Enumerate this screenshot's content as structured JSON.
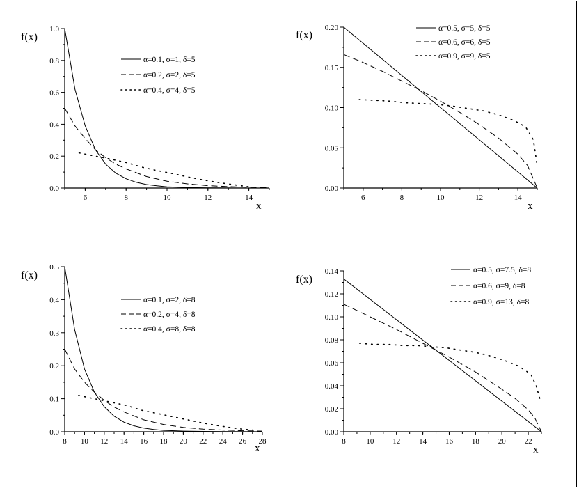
{
  "chart_data": [
    {
      "type": "line",
      "ylabel": "f(x)",
      "xlabel": "x",
      "xlim": [
        5,
        15
      ],
      "ylim": [
        0,
        1.0
      ],
      "x_ticks": [
        "6",
        "8",
        "10",
        "12",
        "14"
      ],
      "y_ticks": [
        "0.0",
        "0.2",
        "0.4",
        "0.6",
        "0.8",
        "1.0"
      ],
      "legend_position": "top-right",
      "series": [
        {
          "name": "α=0.1, σ=1, δ=5",
          "style": "solid",
          "x": [
            5,
            5.5,
            6,
            6.5,
            7,
            7.5,
            8,
            8.5,
            9,
            9.5,
            10,
            11,
            12,
            13,
            14,
            15
          ],
          "y": [
            1.0,
            0.62,
            0.39,
            0.24,
            0.15,
            0.093,
            0.058,
            0.036,
            0.022,
            0.014,
            0.008,
            0.003,
            0.001,
            0.0005,
            0.0002,
            0.0001
          ]
        },
        {
          "name": "α=0.2, σ=2, δ=5",
          "style": "dashed",
          "x": [
            5,
            5.5,
            6,
            6.5,
            7,
            7.5,
            8,
            9,
            10,
            11,
            12,
            13,
            14,
            15
          ],
          "y": [
            0.5,
            0.39,
            0.31,
            0.24,
            0.19,
            0.15,
            0.12,
            0.072,
            0.043,
            0.026,
            0.015,
            0.009,
            0.005,
            0.003
          ]
        },
        {
          "name": "α=0.4, σ=4, δ=5",
          "style": "dotted",
          "x": [
            5.7,
            6.5,
            7.3,
            8,
            8.8,
            9.5,
            10.3,
            11,
            11.8,
            12.5,
            13.3,
            14
          ],
          "y": [
            0.22,
            0.2,
            0.18,
            0.16,
            0.13,
            0.11,
            0.09,
            0.07,
            0.05,
            0.035,
            0.02,
            0.008
          ]
        }
      ]
    },
    {
      "type": "line",
      "ylabel": "f(x)",
      "xlabel": "x",
      "xlim": [
        5,
        15
      ],
      "ylim": [
        0,
        0.2
      ],
      "x_ticks": [
        "6",
        "8",
        "10",
        "12",
        "14"
      ],
      "y_ticks": [
        "0.00",
        "0.05",
        "0.10",
        "0.15",
        "0.20"
      ],
      "legend_position": "top-right",
      "series": [
        {
          "name": "α=0.5, σ=5, δ=5",
          "style": "solid",
          "x": [
            5,
            15
          ],
          "y": [
            0.2,
            0.0
          ]
        },
        {
          "name": "α=0.6, σ=6, δ=5",
          "style": "dashed",
          "x": [
            5,
            6,
            7,
            8,
            9,
            10,
            11,
            12,
            13,
            14,
            14.5,
            15
          ],
          "y": [
            0.166,
            0.156,
            0.145,
            0.133,
            0.121,
            0.108,
            0.094,
            0.079,
            0.062,
            0.042,
            0.028,
            0.0
          ]
        },
        {
          "name": "α=0.9, σ=9, δ=5",
          "style": "dotted",
          "x": [
            5.8,
            6.6,
            7.4,
            8.2,
            9,
            9.8,
            10.6,
            11.4,
            12.2,
            13,
            13.8,
            14.4,
            14.8,
            14.9,
            15
          ],
          "y": [
            0.11,
            0.109,
            0.108,
            0.106,
            0.105,
            0.104,
            0.102,
            0.099,
            0.096,
            0.091,
            0.084,
            0.076,
            0.06,
            0.044,
            0.027
          ]
        }
      ]
    },
    {
      "type": "line",
      "ylabel": "f(x)",
      "xlabel": "x",
      "xlim": [
        8,
        28
      ],
      "ylim": [
        0,
        0.5
      ],
      "x_ticks": [
        "8",
        "10",
        "12",
        "14",
        "16",
        "18",
        "20",
        "22",
        "24",
        "26",
        "28"
      ],
      "y_ticks": [
        "0.0",
        "0.1",
        "0.2",
        "0.3",
        "0.4",
        "0.5"
      ],
      "legend_position": "top-right",
      "series": [
        {
          "name": "α=0.1, σ=2, δ=8",
          "style": "solid",
          "x": [
            8,
            9,
            10,
            11,
            12,
            13,
            14,
            15,
            16,
            17,
            18,
            20,
            22,
            24,
            26,
            28
          ],
          "y": [
            0.5,
            0.31,
            0.19,
            0.12,
            0.076,
            0.047,
            0.029,
            0.018,
            0.011,
            0.007,
            0.004,
            0.002,
            0.001,
            0.0004,
            0.0002,
            0.0001
          ]
        },
        {
          "name": "α=0.2, σ=4, δ=8",
          "style": "dashed",
          "x": [
            8,
            9,
            10,
            11,
            12,
            13,
            14,
            16,
            18,
            20,
            22,
            24,
            26,
            28
          ],
          "y": [
            0.25,
            0.19,
            0.15,
            0.12,
            0.095,
            0.075,
            0.06,
            0.036,
            0.022,
            0.013,
            0.008,
            0.005,
            0.003,
            0.002
          ]
        },
        {
          "name": "α=0.4, σ=8, δ=8",
          "style": "dotted",
          "x": [
            9.4,
            11,
            12.6,
            14.2,
            15.8,
            17.4,
            19,
            20.6,
            22.2,
            23.8,
            25.4,
            27
          ],
          "y": [
            0.11,
            0.1,
            0.09,
            0.08,
            0.065,
            0.055,
            0.045,
            0.035,
            0.025,
            0.017,
            0.01,
            0.005
          ]
        }
      ]
    },
    {
      "type": "line",
      "ylabel": "f(x)",
      "xlabel": "x",
      "xlim": [
        8,
        23
      ],
      "ylim": [
        0,
        0.14
      ],
      "x_ticks": [
        "8",
        "10",
        "12",
        "14",
        "16",
        "18",
        "20",
        "22"
      ],
      "y_ticks": [
        "0.00",
        "0.02",
        "0.04",
        "0.06",
        "0.08",
        "0.10",
        "0.12",
        "0.14"
      ],
      "legend_position": "top-right",
      "series": [
        {
          "name": "α=0.5, σ=7.5, δ=8",
          "style": "solid",
          "x": [
            8,
            23
          ],
          "y": [
            0.133,
            0.0
          ]
        },
        {
          "name": "α=0.6, σ=9,    δ=8",
          "style": "dashed",
          "x": [
            8,
            10,
            12,
            14,
            16,
            18,
            20,
            21,
            22,
            22.5,
            23
          ],
          "y": [
            0.111,
            0.1,
            0.089,
            0.077,
            0.065,
            0.052,
            0.037,
            0.029,
            0.019,
            0.012,
            0.0
          ]
        },
        {
          "name": "α=0.9, σ=13, δ=8",
          "style": "dotted",
          "x": [
            9.2,
            10.3,
            11.4,
            12.5,
            13.6,
            14.7,
            15.8,
            16.9,
            18,
            19.1,
            20.2,
            21.3,
            22.2,
            22.6,
            22.9
          ],
          "y": [
            0.077,
            0.076,
            0.076,
            0.075,
            0.075,
            0.074,
            0.073,
            0.071,
            0.069,
            0.066,
            0.062,
            0.057,
            0.05,
            0.04,
            0.028
          ]
        }
      ]
    }
  ]
}
